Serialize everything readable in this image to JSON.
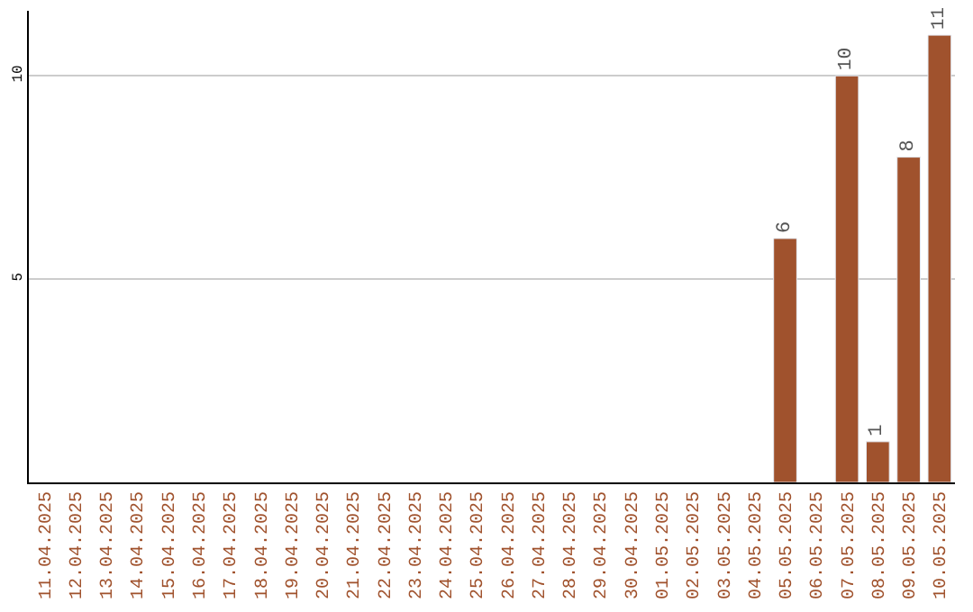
{
  "chart_data": {
    "type": "bar",
    "categories": [
      "11.04.2025",
      "12.04.2025",
      "13.04.2025",
      "14.04.2025",
      "15.04.2025",
      "16.04.2025",
      "17.04.2025",
      "18.04.2025",
      "19.04.2025",
      "20.04.2025",
      "21.04.2025",
      "22.04.2025",
      "23.04.2025",
      "24.04.2025",
      "25.04.2025",
      "26.04.2025",
      "27.04.2025",
      "28.04.2025",
      "29.04.2025",
      "30.04.2025",
      "01.05.2025",
      "02.05.2025",
      "03.05.2025",
      "04.05.2025",
      "05.05.2025",
      "06.05.2025",
      "07.05.2025",
      "08.05.2025",
      "09.05.2025",
      "10.05.2025"
    ],
    "values": [
      null,
      null,
      null,
      null,
      null,
      null,
      null,
      null,
      null,
      null,
      null,
      null,
      null,
      null,
      null,
      null,
      null,
      null,
      null,
      null,
      null,
      null,
      null,
      null,
      6,
      null,
      10,
      1,
      8,
      11
    ],
    "value_labels": [
      null,
      null,
      null,
      null,
      null,
      null,
      null,
      null,
      null,
      null,
      null,
      null,
      null,
      null,
      null,
      null,
      null,
      null,
      null,
      null,
      null,
      null,
      null,
      null,
      "6",
      null,
      "10",
      "1",
      "8",
      "11"
    ],
    "color": "#a0522d",
    "ylim": [
      0,
      11.6
    ],
    "yticks": [
      5,
      10
    ],
    "grid": "y",
    "legend": false
  }
}
